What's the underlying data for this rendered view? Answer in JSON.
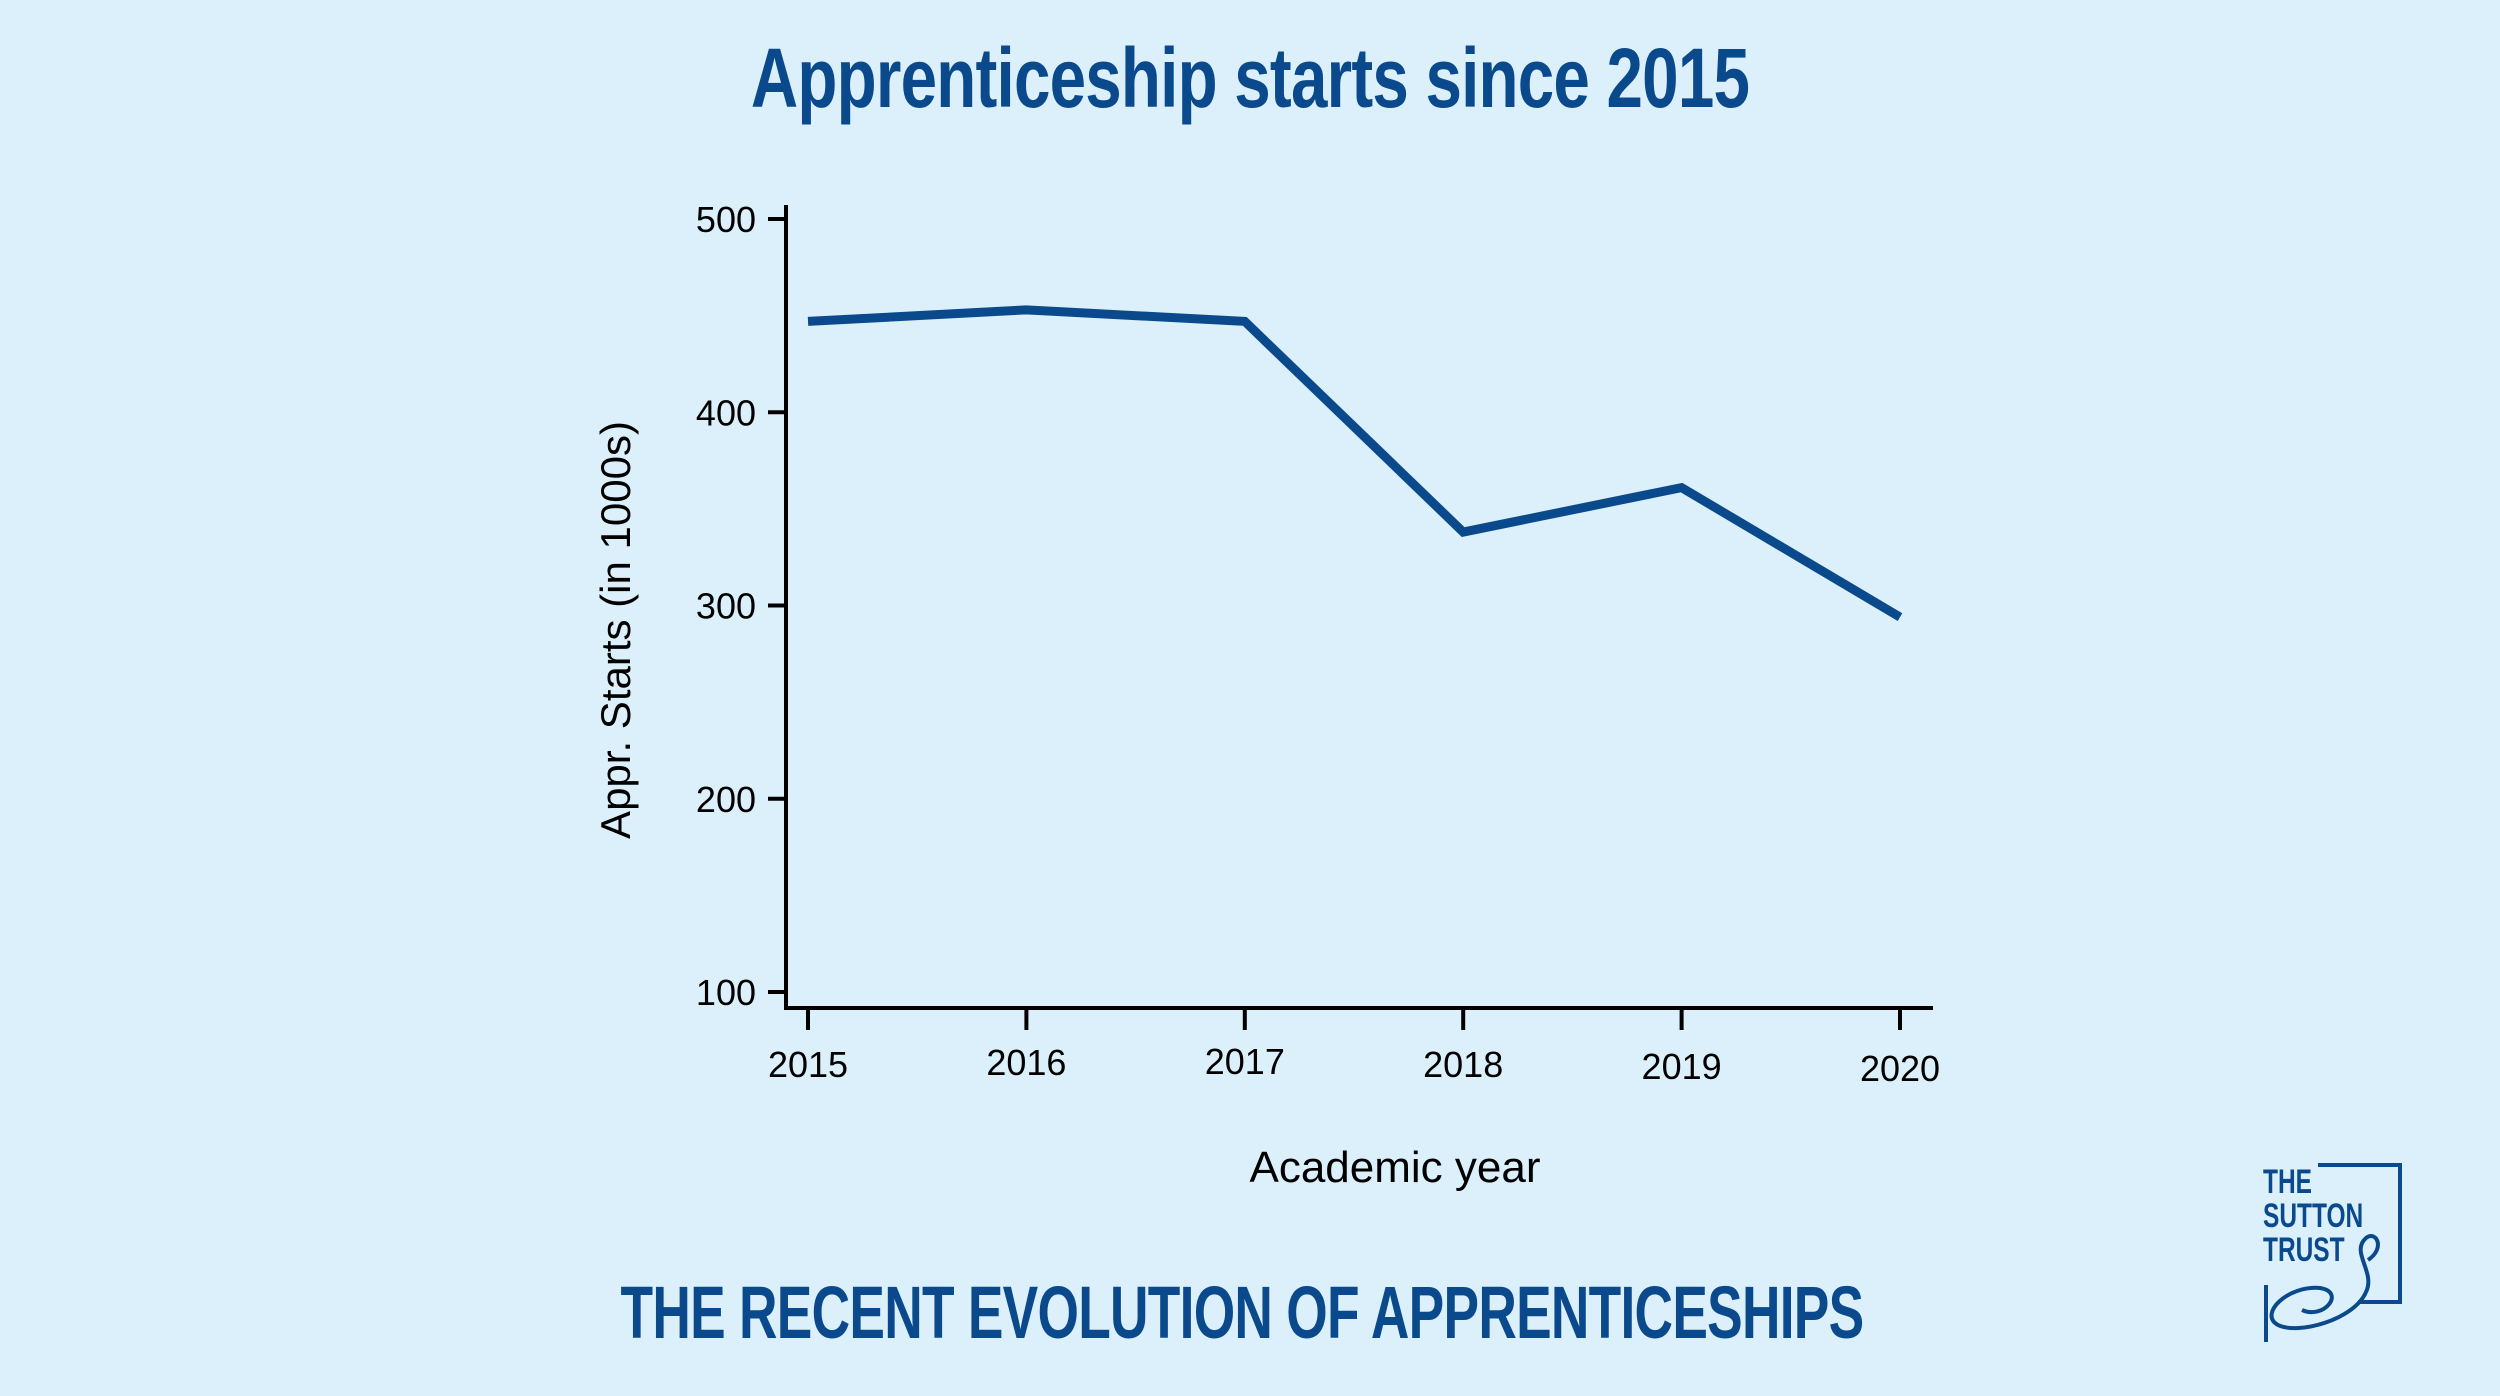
{
  "title": "Apprenticeship starts since 2015",
  "subtitle": "THE RECENT EVOLUTION OF APPRENTICESHIPS",
  "logo": {
    "line1": "THE",
    "line2": "SUTTON",
    "line3": "TRUST"
  },
  "colors": {
    "background": "#dcf0fb",
    "brand": "#0a4a8c",
    "axis": "#000000"
  },
  "chart_data": {
    "type": "line",
    "title": "Apprenticeship starts since 2015",
    "xlabel": "Academic year",
    "ylabel": "Appr. Starts (in 1000s)",
    "x": [
      "2015",
      "2016",
      "2017",
      "2018",
      "2019",
      "2020"
    ],
    "series": [
      {
        "values": [
          447,
          453,
          447,
          338,
          361,
          294
        ]
      }
    ],
    "ylim": [
      100,
      500
    ],
    "yticks": [
      100,
      200,
      300,
      400,
      500
    ],
    "grid": false,
    "legend": "none"
  }
}
